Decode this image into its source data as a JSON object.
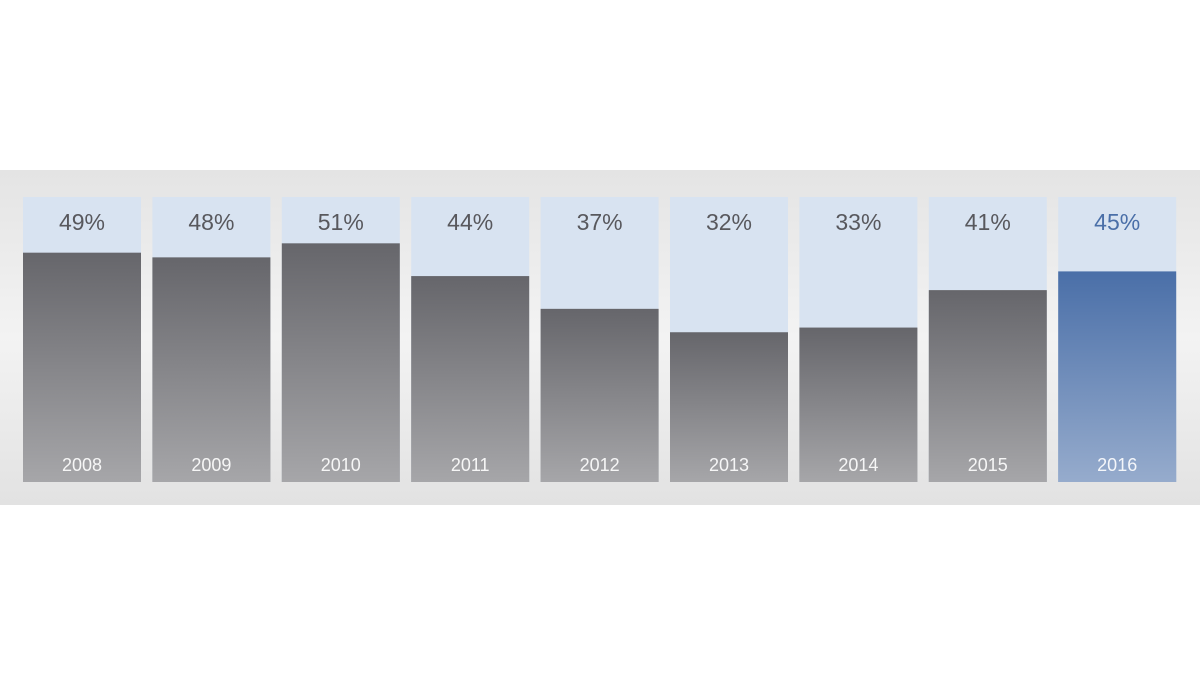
{
  "chart_data": {
    "type": "bar",
    "categories": [
      "2008",
      "2009",
      "2010",
      "2011",
      "2012",
      "2013",
      "2014",
      "2015",
      "2016"
    ],
    "values": [
      49,
      48,
      51,
      44,
      37,
      32,
      33,
      41,
      45
    ],
    "value_labels": [
      "49%",
      "48%",
      "51%",
      "44%",
      "37%",
      "32%",
      "33%",
      "41%",
      "45%"
    ],
    "colors": [
      "#66666b",
      "#66666b",
      "#66666b",
      "#66666b",
      "#66666b",
      "#66666b",
      "#66666b",
      "#66666b",
      "#4a6fa8"
    ]
  }
}
